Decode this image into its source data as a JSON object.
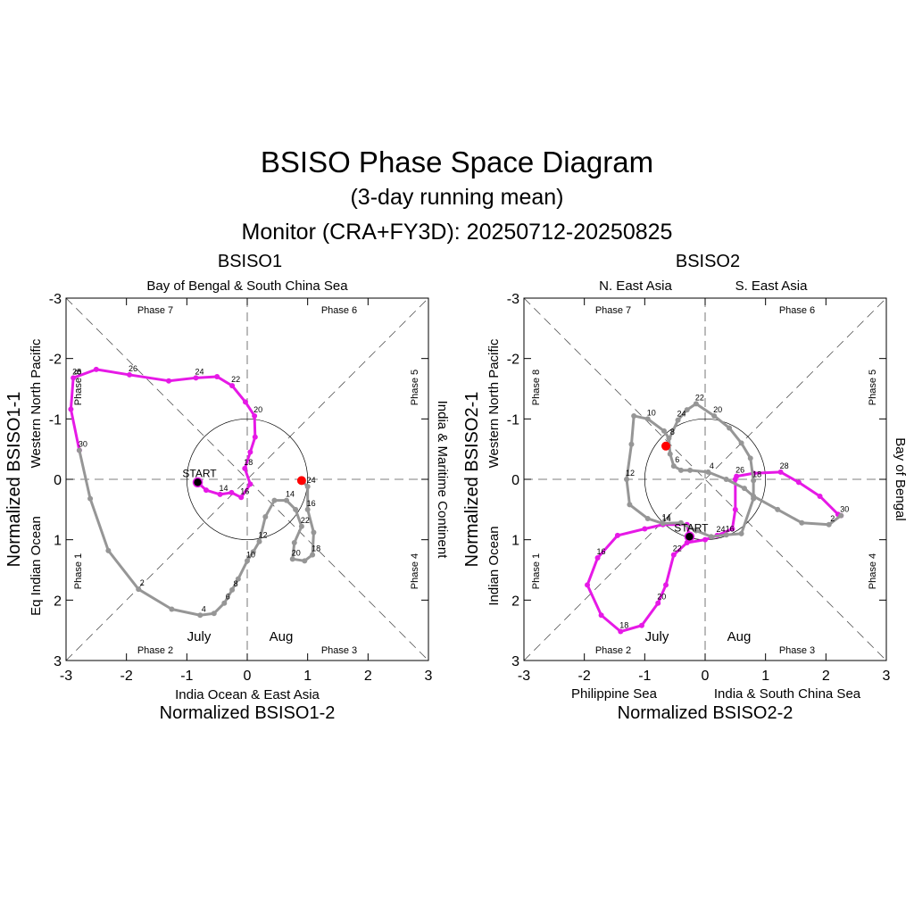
{
  "title": "BSISO Phase Space Diagram",
  "subtitle": "(3-day running mean)",
  "monitor_label": "Monitor (CRA+FY3D): 20250712-20250825",
  "colors": {
    "july": "#e619e6",
    "aug": "#969696",
    "end_marker": "#ff0000",
    "start_marker": "#000000"
  },
  "start_label": "START",
  "chart_data": [
    {
      "type": "line",
      "title": "BSISO1",
      "xlabel": "Normalized BSISO1-2",
      "ylabel": "Normalized BSISO1-1",
      "xlim": [
        -3,
        3
      ],
      "ylim": [
        -3,
        3
      ],
      "y_axis_inverted": true,
      "xticks": [
        "-3",
        "-2",
        "-1",
        "0",
        "1",
        "2",
        "3"
      ],
      "yticks": [
        "-3",
        "-2",
        "-1",
        "0",
        "1",
        "2",
        "3"
      ],
      "region_labels": {
        "top": "Bay of Bengal & South China Sea",
        "top_left": "",
        "top_right": "",
        "bottom": "India Ocean & East Asia",
        "bottom_left": "",
        "bottom_right": "",
        "left_upper": "Western North Pacific",
        "left_lower": "Eq Indian Ocean",
        "right": "India & Maritime Continent"
      },
      "phases": [
        "Phase 7",
        "Phase 6",
        "Phase 5",
        "Phase 4",
        "Phase 3",
        "Phase 2",
        "Phase 1",
        "Phase 8"
      ],
      "legend": {
        "july": "July",
        "aug": "Aug"
      },
      "series": [
        {
          "name": "July",
          "points": [
            [
              -0.82,
              0.05
            ],
            [
              -0.68,
              0.18
            ],
            [
              -0.45,
              0.25
            ],
            [
              -0.26,
              0.22
            ],
            [
              -0.1,
              0.3
            ],
            [
              0.05,
              0.08
            ],
            [
              -0.04,
              -0.18
            ],
            [
              0.05,
              -0.45
            ],
            [
              0.13,
              -0.7
            ],
            [
              0.12,
              -1.05
            ],
            [
              -0.03,
              -1.28
            ],
            [
              -0.25,
              -1.55
            ],
            [
              -0.5,
              -1.7
            ],
            [
              -0.85,
              -1.68
            ],
            [
              -1.3,
              -1.63
            ],
            [
              -1.95,
              -1.73
            ],
            [
              -2.5,
              -1.82
            ],
            [
              -2.88,
              -1.68
            ],
            [
              -2.92,
              -1.16
            ],
            [
              -2.78,
              -0.48
            ]
          ],
          "labels": [
            {
              "i": 2,
              "t": "14"
            },
            {
              "i": 4,
              "t": "16"
            },
            {
              "i": 6,
              "t": "18"
            },
            {
              "i": 9,
              "t": "20"
            },
            {
              "i": 11,
              "t": "22"
            },
            {
              "i": 13,
              "t": "24"
            },
            {
              "i": 15,
              "t": "26"
            },
            {
              "i": 17,
              "t": "28"
            },
            {
              "i": 19,
              "t": "30"
            }
          ]
        },
        {
          "name": "Aug",
          "points": [
            [
              -2.78,
              -0.48
            ],
            [
              -2.6,
              0.32
            ],
            [
              -2.3,
              1.18
            ],
            [
              -1.8,
              1.82
            ],
            [
              -1.25,
              2.15
            ],
            [
              -0.78,
              2.25
            ],
            [
              -0.55,
              2.22
            ],
            [
              -0.38,
              2.05
            ],
            [
              -0.25,
              1.83
            ],
            [
              -0.15,
              1.65
            ],
            [
              0.0,
              1.35
            ],
            [
              0.1,
              1.2
            ],
            [
              0.2,
              1.03
            ],
            [
              0.3,
              0.62
            ],
            [
              0.45,
              0.35
            ],
            [
              0.65,
              0.35
            ],
            [
              0.8,
              0.5
            ],
            [
              0.9,
              0.78
            ],
            [
              0.78,
              1.05
            ],
            [
              0.75,
              1.32
            ],
            [
              0.95,
              1.35
            ],
            [
              1.08,
              1.25
            ],
            [
              1.1,
              0.88
            ],
            [
              1.0,
              0.5
            ],
            [
              1.0,
              0.12
            ],
            [
              0.9,
              0.02
            ]
          ],
          "labels": [
            {
              "i": 3,
              "t": "2"
            },
            {
              "i": 5,
              "t": "4"
            },
            {
              "i": 7,
              "t": "6"
            },
            {
              "i": 8,
              "t": "8"
            },
            {
              "i": 10,
              "t": "10"
            },
            {
              "i": 12,
              "t": "12"
            },
            {
              "i": 15,
              "t": "14"
            },
            {
              "i": 23,
              "t": "16"
            },
            {
              "i": 21,
              "t": "18"
            },
            {
              "i": 19,
              "t": "20"
            },
            {
              "i": 17,
              "t": "22"
            },
            {
              "i": 24,
              "t": "24"
            }
          ]
        }
      ]
    },
    {
      "type": "line",
      "title": "BSISO2",
      "xlabel": "Normalized BSISO2-2",
      "ylabel": "Normalized BSISO2-1",
      "xlim": [
        -3,
        3
      ],
      "ylim": [
        -3,
        3
      ],
      "y_axis_inverted": true,
      "xticks": [
        "-3",
        "-2",
        "-1",
        "0",
        "1",
        "2",
        "3"
      ],
      "yticks": [
        "-3",
        "-2",
        "-1",
        "0",
        "1",
        "2",
        "3"
      ],
      "region_labels": {
        "top": "",
        "top_left": "N. East Asia",
        "top_right": "S. East Asia",
        "bottom": "",
        "bottom_left": "Philippine Sea",
        "bottom_right": "India & South China Sea",
        "left_upper": "Western North Pacific",
        "left_lower": "Indian Ocean",
        "right": "Bay of Bengal"
      },
      "phases": [
        "Phase 7",
        "Phase 6",
        "Phase 5",
        "Phase 4",
        "Phase 3",
        "Phase 2",
        "Phase 1",
        "Phase 8"
      ],
      "legend": {
        "july": "July",
        "aug": "Aug"
      },
      "series": [
        {
          "name": "July",
          "points": [
            [
              -0.26,
              0.95
            ],
            [
              -0.3,
              0.75
            ],
            [
              -0.7,
              0.75
            ],
            [
              -1.0,
              0.82
            ],
            [
              -1.45,
              0.93
            ],
            [
              -1.78,
              1.3
            ],
            [
              -1.95,
              1.75
            ],
            [
              -1.72,
              2.25
            ],
            [
              -1.4,
              2.52
            ],
            [
              -1.05,
              2.42
            ],
            [
              -0.78,
              2.05
            ],
            [
              -0.65,
              1.75
            ],
            [
              -0.52,
              1.25
            ],
            [
              -0.3,
              1.05
            ],
            [
              0.0,
              1.0
            ],
            [
              0.2,
              0.93
            ],
            [
              0.45,
              0.82
            ],
            [
              0.5,
              0.5
            ],
            [
              0.5,
              0.0
            ],
            [
              0.52,
              -0.05
            ],
            [
              0.8,
              -0.1
            ],
            [
              1.25,
              -0.12
            ],
            [
              1.55,
              0.05
            ],
            [
              1.9,
              0.28
            ],
            [
              2.2,
              0.58
            ],
            [
              2.25,
              0.6
            ]
          ],
          "labels": [
            {
              "i": 2,
              "t": "14"
            },
            {
              "i": 5,
              "t": "16"
            },
            {
              "i": 8,
              "t": "18"
            },
            {
              "i": 10,
              "t": "20"
            },
            {
              "i": 12,
              "t": "22"
            },
            {
              "i": 15,
              "t": "24"
            },
            {
              "i": 19,
              "t": "26"
            },
            {
              "i": 21,
              "t": "28"
            },
            {
              "i": 25,
              "t": "30"
            }
          ]
        },
        {
          "name": "Aug",
          "points": [
            [
              2.25,
              0.6
            ],
            [
              2.05,
              0.75
            ],
            [
              1.6,
              0.72
            ],
            [
              1.2,
              0.5
            ],
            [
              0.8,
              0.28
            ],
            [
              0.65,
              0.15
            ],
            [
              0.35,
              0.0
            ],
            [
              0.05,
              -0.12
            ],
            [
              -0.25,
              -0.15
            ],
            [
              -0.4,
              -0.15
            ],
            [
              -0.52,
              -0.22
            ],
            [
              -0.58,
              -0.42
            ],
            [
              -0.6,
              -0.68
            ],
            [
              -0.68,
              -0.8
            ],
            [
              -0.95,
              -1.0
            ],
            [
              -1.18,
              -1.05
            ],
            [
              -1.22,
              -0.58
            ],
            [
              -1.3,
              0.0
            ],
            [
              -1.25,
              0.42
            ],
            [
              -0.95,
              0.65
            ],
            [
              -0.7,
              0.73
            ],
            [
              -0.4,
              0.72
            ],
            [
              -0.15,
              0.85
            ],
            [
              0.1,
              0.95
            ],
            [
              0.35,
              0.92
            ],
            [
              0.6,
              0.9
            ],
            [
              0.8,
              0.32
            ],
            [
              0.8,
              0.02
            ],
            [
              0.75,
              -0.35
            ],
            [
              0.6,
              -0.6
            ],
            [
              0.4,
              -0.85
            ],
            [
              0.15,
              -1.05
            ],
            [
              -0.15,
              -1.25
            ],
            [
              -0.3,
              -1.15
            ],
            [
              -0.45,
              -0.98
            ],
            [
              -0.65,
              -0.55
            ]
          ],
          "labels": [
            {
              "i": 1,
              "t": "2"
            },
            {
              "i": 7,
              "t": "4"
            },
            {
              "i": 10,
              "t": "6"
            },
            {
              "i": 12,
              "t": "8"
            },
            {
              "i": 14,
              "t": "10"
            },
            {
              "i": 17,
              "t": "12"
            },
            {
              "i": 20,
              "t": "14"
            },
            {
              "i": 24,
              "t": "16"
            },
            {
              "i": 27,
              "t": "18"
            },
            {
              "i": 31,
              "t": "20"
            },
            {
              "i": 32,
              "t": "22"
            },
            {
              "i": 34,
              "t": "24"
            }
          ]
        }
      ]
    }
  ]
}
